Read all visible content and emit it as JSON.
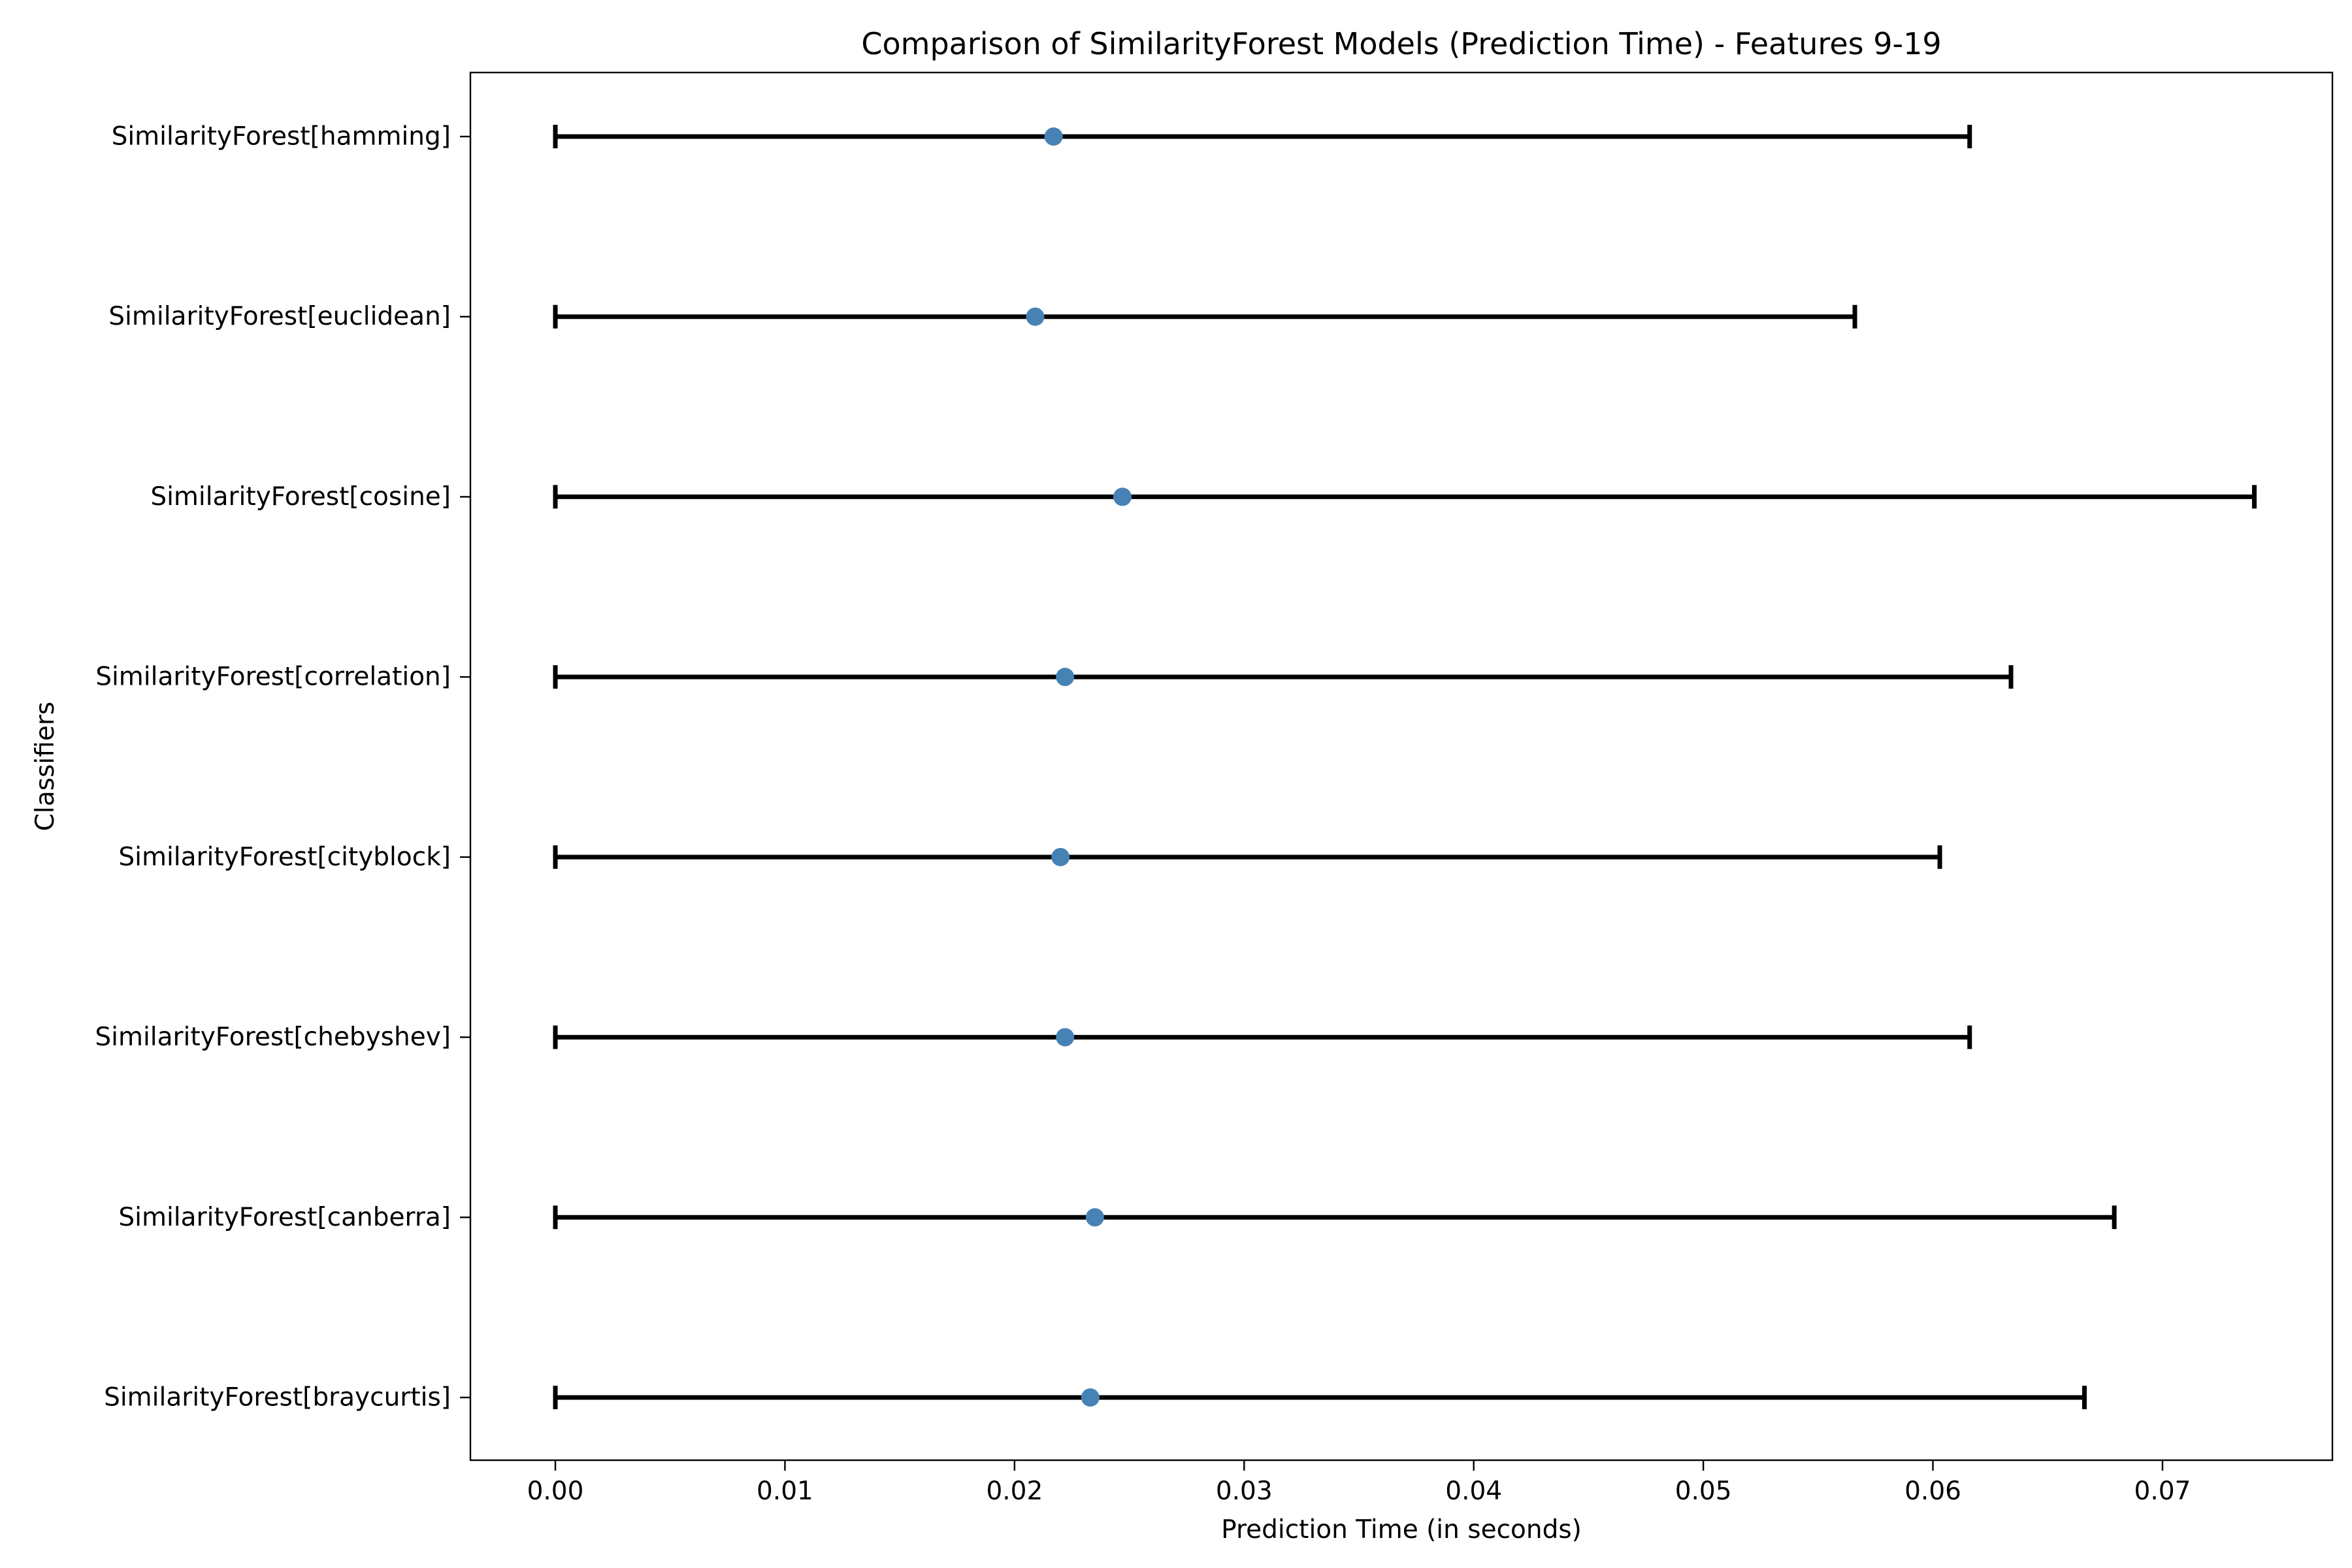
{
  "chart_data": {
    "type": "errorbar",
    "title": "Comparison of SimilarityForest Models (Prediction Time) - Features 9-19",
    "xlabel": "Prediction Time (in seconds)",
    "ylabel": "Classifiers",
    "xlim": [
      -0.0037,
      0.0774
    ],
    "xticks": [
      "0.00",
      "0.01",
      "0.02",
      "0.03",
      "0.04",
      "0.05",
      "0.06",
      "0.07"
    ],
    "grid": false,
    "categories": [
      "SimilarityForest[hamming]",
      "SimilarityForest[euclidean]",
      "SimilarityForest[cosine]",
      "SimilarityForest[correlation]",
      "SimilarityForest[cityblock]",
      "SimilarityForest[chebyshev]",
      "SimilarityForest[canberra]",
      "SimilarityForest[braycurtis]"
    ],
    "series": [
      {
        "mean": [
          0.0217,
          0.0209,
          0.0247,
          0.0222,
          0.022,
          0.0222,
          0.0235,
          0.0233
        ],
        "lower": [
          0.0,
          0.0,
          0.0,
          0.0,
          0.0,
          0.0,
          0.0,
          0.0
        ],
        "upper": [
          0.0616,
          0.0566,
          0.074,
          0.0634,
          0.0603,
          0.0616,
          0.0679,
          0.0666
        ]
      }
    ],
    "colors": {
      "marker": "#4682b4",
      "errorbar": "#000000",
      "axes": "#000000"
    }
  }
}
